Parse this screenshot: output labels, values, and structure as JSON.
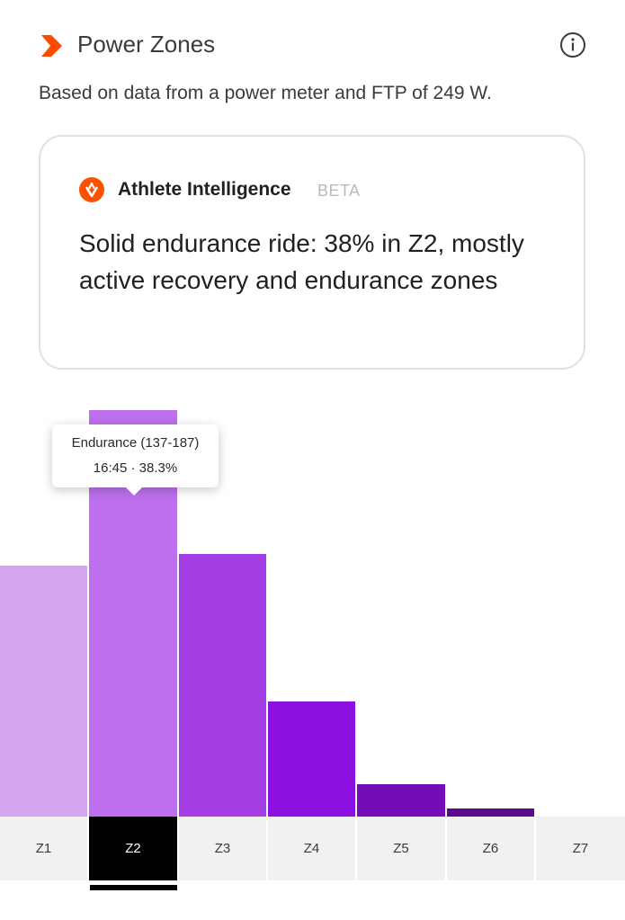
{
  "header": {
    "title": "Power Zones",
    "logo_icon": "chevron-brand-icon",
    "info_icon": "info-icon"
  },
  "subtitle": "Based on data from a power meter and FTP of 249 W.",
  "insight_card": {
    "badge_icon": "athlete-intelligence-icon",
    "title": "Athlete Intelligence",
    "badge": "BETA",
    "text": "Solid endurance ride: 38% in Z2, mostly active recovery and endurance zones"
  },
  "tooltip": {
    "zone_label": "Endurance (137-187)",
    "detail": "16:45 · 38.3%"
  },
  "chart_data": {
    "type": "bar",
    "categories": [
      "Z1",
      "Z2",
      "Z3",
      "Z4",
      "Z5",
      "Z6",
      "Z7"
    ],
    "values": [
      23.7,
      38.3,
      24.8,
      11.0,
      3.2,
      0.9,
      0.15
    ],
    "colors": [
      "#d5a5f1",
      "#bd6fee",
      "#a63ee6",
      "#8c10e0",
      "#740cb8",
      "#5c0a8c",
      "#3f0a63"
    ],
    "selected_index": 1,
    "ylim": [
      0,
      38.3
    ]
  },
  "tabs": [
    {
      "label": "Z1"
    },
    {
      "label": "Z2"
    },
    {
      "label": "Z3"
    },
    {
      "label": "Z4"
    },
    {
      "label": "Z5"
    },
    {
      "label": "Z6"
    },
    {
      "label": "Z7"
    }
  ]
}
